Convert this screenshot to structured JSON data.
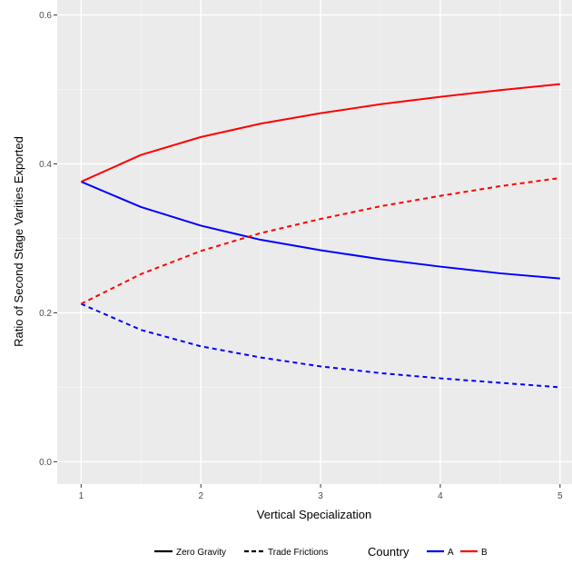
{
  "chart_data": {
    "type": "line",
    "xlabel": "Vertical Specialization",
    "ylabel": "Ratio of Second Stage Varities Exported",
    "xlim": [
      0.8,
      5.1
    ],
    "ylim": [
      -0.03,
      0.62
    ],
    "x_ticks": [
      1,
      2,
      3,
      4,
      5
    ],
    "x_tick_labels": [
      "1",
      "2",
      "3",
      "4",
      "5"
    ],
    "y_ticks": [
      0.0,
      0.2,
      0.4,
      0.6
    ],
    "y_tick_labels": [
      "0.0",
      "0.2",
      "0.4",
      "0.6"
    ],
    "grid": true,
    "legend_position": "bottom",
    "legends": [
      {
        "title": "",
        "items": [
          {
            "label": "Zero Gravity",
            "linetype": "solid"
          },
          {
            "label": "Trade Frictions",
            "linetype": "dashed"
          }
        ]
      },
      {
        "title": "Country",
        "items": [
          {
            "label": "A",
            "color": "#0000ff"
          },
          {
            "label": "B",
            "color": "#ff0000"
          }
        ]
      }
    ],
    "series": [
      {
        "country": "A",
        "linetype": "solid",
        "color": "#0000ff",
        "x": [
          1,
          1.5,
          2,
          2.5,
          3,
          3.5,
          4,
          4.5,
          5
        ],
        "y": [
          0.376,
          0.342,
          0.317,
          0.298,
          0.284,
          0.272,
          0.262,
          0.253,
          0.246
        ]
      },
      {
        "country": "B",
        "linetype": "solid",
        "color": "#ff0000",
        "x": [
          1,
          1.5,
          2,
          2.5,
          3,
          3.5,
          4,
          4.5,
          5
        ],
        "y": [
          0.376,
          0.412,
          0.436,
          0.454,
          0.468,
          0.48,
          0.49,
          0.499,
          0.507
        ]
      },
      {
        "country": "A",
        "linetype": "dashed",
        "color": "#0000ff",
        "x": [
          1,
          1.5,
          2,
          2.5,
          3,
          3.5,
          4,
          4.5,
          5
        ],
        "y": [
          0.212,
          0.177,
          0.155,
          0.14,
          0.128,
          0.119,
          0.112,
          0.106,
          0.1
        ]
      },
      {
        "country": "B",
        "linetype": "dashed",
        "color": "#ff0000",
        "x": [
          1,
          1.5,
          2,
          2.5,
          3,
          3.5,
          4,
          4.5,
          5
        ],
        "y": [
          0.212,
          0.252,
          0.283,
          0.307,
          0.326,
          0.343,
          0.357,
          0.37,
          0.381
        ]
      }
    ]
  }
}
